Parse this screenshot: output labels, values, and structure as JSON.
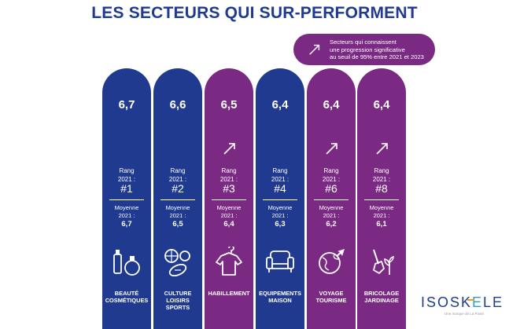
{
  "title": "LES SECTEURS QUI SUR-PERFORMENT",
  "legend": {
    "lines": [
      "Secteurs qui connaissent",
      "une progression significative",
      "au seuil de 95% entre 2021 et 2023"
    ],
    "icon": "trend-up-arrow-icon",
    "color": "#7b2a83"
  },
  "colors": {
    "blue": "#1f3a8f",
    "purple": "#7b2a83",
    "title": "#1f3a8f"
  },
  "labels": {
    "rang": "Rang",
    "rang_year": "2021 :",
    "moyenne": "Moyenne",
    "moyenne_year": "2021 :"
  },
  "chart_data": {
    "type": "bar",
    "title": "LES SECTEURS QUI SUR-PERFORMENT",
    "categories": [
      "BEAUTÉ COSMÉTIQUES",
      "CULTURE LOISIRS SPORTS",
      "HABILLEMENT",
      "EQUIPEMENTS MAISON",
      "VOYAGE TOURISME",
      "BRICOLAGE JARDINAGE"
    ],
    "series": [
      {
        "values": [
          6.7,
          6.6,
          6.5,
          6.4,
          6.4,
          6.4
        ]
      }
    ],
    "bars": [
      {
        "score": "6,7",
        "rank": "#1",
        "avg": "6,7",
        "significant": false,
        "color": "#1f3a8f",
        "icon": "cosmetics-icon",
        "name_lines": [
          "BEAUTÉ",
          "COSMÉTIQUES"
        ]
      },
      {
        "score": "6,6",
        "rank": "#2",
        "avg": "6,5",
        "significant": false,
        "color": "#1f3a8f",
        "icon": "sports-balls-icon",
        "name_lines": [
          "CULTURE",
          "LOISIRS",
          "SPORTS"
        ]
      },
      {
        "score": "6,5",
        "rank": "#3",
        "avg": "6,4",
        "significant": true,
        "color": "#7b2a83",
        "icon": "tshirt-hanger-icon",
        "name_lines": [
          "HABILLEMENT"
        ]
      },
      {
        "score": "6,4",
        "rank": "#4",
        "avg": "6,3",
        "significant": false,
        "color": "#1f3a8f",
        "icon": "armchair-icon",
        "name_lines": [
          "EQUIPEMENTS",
          "MAISON"
        ]
      },
      {
        "score": "6,4",
        "rank": "#6",
        "avg": "6,2",
        "significant": true,
        "color": "#7b2a83",
        "icon": "globe-plane-icon",
        "name_lines": [
          "VOYAGE",
          "TOURISME"
        ]
      },
      {
        "score": "6,4",
        "rank": "#8",
        "avg": "6,1",
        "significant": true,
        "color": "#7b2a83",
        "icon": "shovel-plant-icon",
        "name_lines": [
          "BRICOLAGE",
          "JARDINAGE"
        ]
      }
    ]
  },
  "brand": {
    "name_before": "ISOSK",
    "name_accent": "E",
    "name_after": "LE",
    "tagline": "Une marque de La Poste"
  }
}
